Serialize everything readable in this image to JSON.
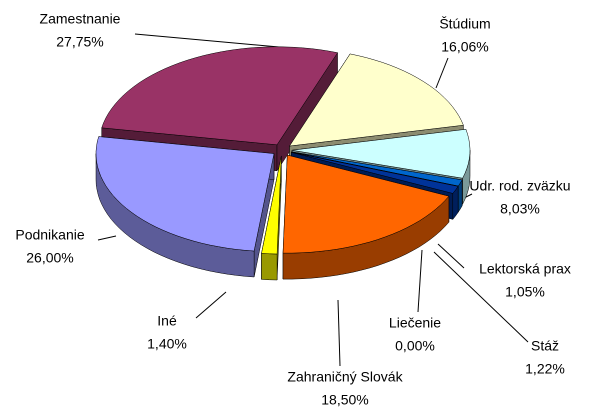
{
  "chart_data": {
    "type": "pie",
    "categories": [
      "Zamestnanie",
      "Štúdium",
      "Udr. rod. zväzku",
      "Lektorská prax",
      "Liečenie",
      "Stáž",
      "Zahraničný Slovák",
      "Iné",
      "Podnikanie"
    ],
    "values": [
      27.75,
      16.06,
      8.03,
      1.05,
      0.0,
      1.22,
      18.5,
      1.4,
      26.0
    ],
    "value_labels": [
      "27,75%",
      "16,06%",
      "8,03%",
      "1,05%",
      "0,00%",
      "1,22%",
      "18,50%",
      "1,40%",
      "26,00%"
    ],
    "colors": [
      "#993366",
      "#ffffcc",
      "#ccffff",
      "#0066cc",
      "#660066",
      "#003399",
      "#ff6600",
      "#ffff00",
      "#9999ff"
    ]
  }
}
